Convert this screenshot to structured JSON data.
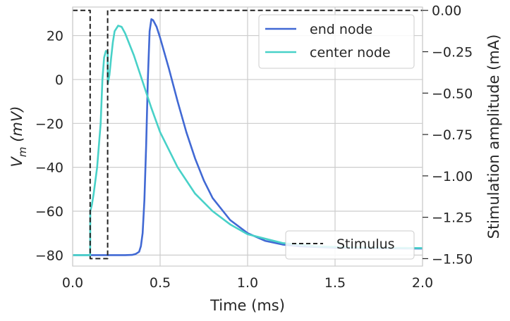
{
  "chart_data": {
    "type": "line",
    "xlabel": "Time (ms)",
    "ylabel_base": "V",
    "ylabel_sub": "m",
    "ylabel_unit": " (mV)",
    "y2label": "Stimulation amplitude (mA)",
    "xlim": [
      0.0,
      2.0
    ],
    "ylim": [
      -85,
      33
    ],
    "y2lim": [
      -1.545,
      0.02
    ],
    "x_ticks": [
      "0.0",
      "0.5",
      "1.0",
      "1.5",
      "2.0"
    ],
    "y_ticks": [
      "20",
      "0",
      "−20",
      "−40",
      "−60",
      "−80"
    ],
    "y2_ticks": [
      "0.00",
      "−0.25",
      "−0.50",
      "−0.75",
      "−1.00",
      "−1.25",
      "−1.50"
    ],
    "grid": true,
    "series": [
      {
        "name": "end node",
        "axis": "left",
        "color": "#4169d4",
        "points": [
          [
            0.0,
            -80
          ],
          [
            0.1,
            -80
          ],
          [
            0.2,
            -80
          ],
          [
            0.3,
            -80
          ],
          [
            0.34,
            -79.9
          ],
          [
            0.36,
            -79.5
          ],
          [
            0.38,
            -78.5
          ],
          [
            0.39,
            -76
          ],
          [
            0.4,
            -70
          ],
          [
            0.41,
            -55
          ],
          [
            0.42,
            -30
          ],
          [
            0.43,
            0
          ],
          [
            0.44,
            22
          ],
          [
            0.45,
            27.5
          ],
          [
            0.46,
            27
          ],
          [
            0.48,
            24
          ],
          [
            0.5,
            19
          ],
          [
            0.55,
            5
          ],
          [
            0.6,
            -10
          ],
          [
            0.65,
            -24
          ],
          [
            0.7,
            -36
          ],
          [
            0.75,
            -46
          ],
          [
            0.8,
            -54
          ],
          [
            0.9,
            -64
          ],
          [
            1.0,
            -70
          ],
          [
            1.1,
            -73.5
          ],
          [
            1.2,
            -75.2
          ],
          [
            1.3,
            -76
          ],
          [
            1.5,
            -76.6
          ],
          [
            1.75,
            -76.9
          ],
          [
            2.0,
            -77
          ]
        ]
      },
      {
        "name": "center node",
        "axis": "left",
        "color": "#48d1c8",
        "points": [
          [
            0.0,
            -80
          ],
          [
            0.1,
            -80
          ],
          [
            0.101,
            -60
          ],
          [
            0.11,
            -57
          ],
          [
            0.12,
            -52
          ],
          [
            0.14,
            -40
          ],
          [
            0.16,
            -20
          ],
          [
            0.17,
            0
          ],
          [
            0.18,
            10
          ],
          [
            0.19,
            13
          ],
          [
            0.2,
            12.5
          ],
          [
            0.201,
            -2
          ],
          [
            0.21,
            2
          ],
          [
            0.22,
            10
          ],
          [
            0.23,
            17
          ],
          [
            0.24,
            22
          ],
          [
            0.26,
            24.5
          ],
          [
            0.28,
            24
          ],
          [
            0.3,
            21
          ],
          [
            0.35,
            11
          ],
          [
            0.4,
            -1
          ],
          [
            0.45,
            -13
          ],
          [
            0.5,
            -24
          ],
          [
            0.6,
            -40
          ],
          [
            0.7,
            -52
          ],
          [
            0.8,
            -60
          ],
          [
            0.9,
            -66
          ],
          [
            1.0,
            -70.5
          ],
          [
            1.2,
            -74.5
          ],
          [
            1.4,
            -76
          ],
          [
            1.6,
            -76.5
          ],
          [
            2.0,
            -76.8
          ]
        ]
      },
      {
        "name": "Stimulus",
        "axis": "right",
        "color": "#222222",
        "dashed": true,
        "points": [
          [
            0.0,
            0.0
          ],
          [
            0.1,
            0.0
          ],
          [
            0.1,
            -1.5
          ],
          [
            0.2,
            -1.5
          ],
          [
            0.2,
            0.0
          ],
          [
            2.0,
            0.0
          ]
        ]
      }
    ]
  }
}
